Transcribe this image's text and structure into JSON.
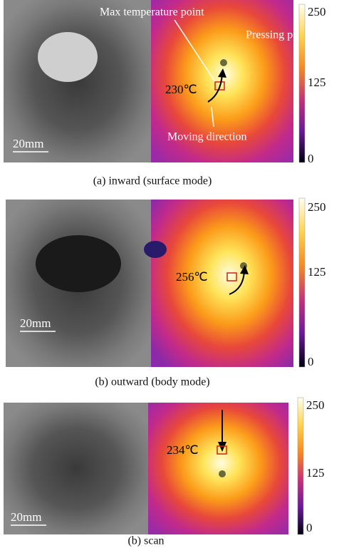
{
  "panels": [
    {
      "caption": "(a) inward (surface mode)",
      "scale_bar": "20mm",
      "temperature": "230℃",
      "annotations": [
        "Max temperature point",
        "Pressing point",
        "Moving direction"
      ],
      "colorbar_ticks": [
        250,
        125,
        0
      ]
    },
    {
      "caption": "(b) outward (body mode)",
      "scale_bar": "20mm",
      "temperature": "256℃",
      "colorbar_ticks": [
        250,
        125,
        0
      ]
    },
    {
      "caption": "(b) scan",
      "scale_bar": "20mm",
      "temperature": "234℃",
      "colorbar_ticks": [
        250,
        125,
        0
      ]
    }
  ]
}
